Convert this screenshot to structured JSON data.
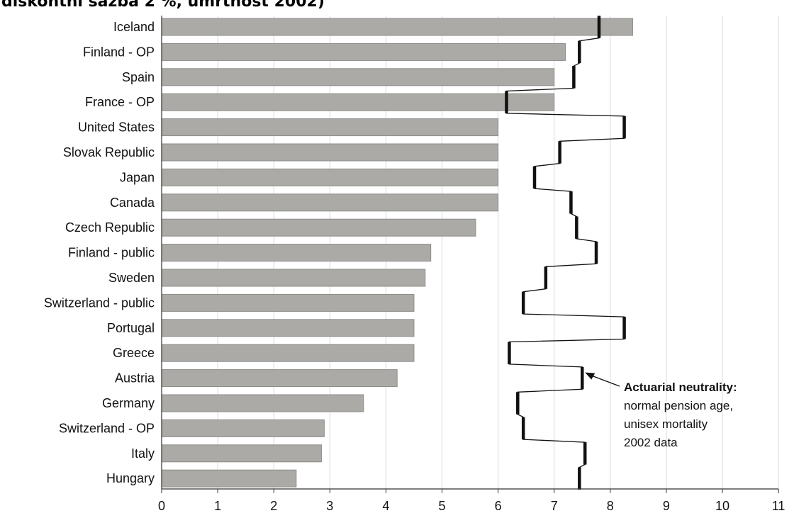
{
  "page": {
    "title": "diskontní sazba 2 %, úmrtnost 2002)"
  },
  "colors": {
    "bar": "#acaaa7",
    "bar_stroke": "#8d8b88",
    "line": "#111111",
    "grid": "#d9d9d9",
    "axis": "#333333"
  },
  "chart_data": {
    "type": "bar",
    "orientation": "horizontal",
    "categories": [
      "Iceland",
      "Finland - OP",
      "Spain",
      "France - OP",
      "United States",
      "Slovak Republic",
      "Japan",
      "Canada",
      "Czech Republic",
      "Finland - public",
      "Sweden",
      "Switzerland - public",
      "Portugal",
      "Greece",
      "Austria",
      "Germany",
      "Switzerland - OP",
      "Italy",
      "Hungary"
    ],
    "values": [
      8.4,
      7.2,
      7.0,
      7.0,
      6.0,
      6.0,
      6.0,
      6.0,
      5.6,
      4.8,
      4.7,
      4.5,
      4.5,
      4.5,
      4.2,
      3.6,
      2.9,
      2.85,
      2.4
    ],
    "series": [
      {
        "values": [
          7.8,
          7.45,
          7.35,
          6.15,
          8.25,
          7.1,
          6.65,
          7.3,
          7.4,
          7.75,
          6.85,
          6.45,
          8.25,
          6.2,
          7.5,
          6.35,
          6.45,
          7.55,
          7.45
        ]
      }
    ],
    "xlim": [
      0,
      11
    ],
    "xticks": [
      "0",
      "1",
      "2",
      "3",
      "4",
      "5",
      "6",
      "7",
      "8",
      "9",
      "10",
      "11"
    ],
    "grid": true,
    "annotation": {
      "title": "Actuarial neutrality:",
      "lines": [
        "normal pension age,",
        "unisex mortality",
        "2002 data"
      ]
    }
  }
}
